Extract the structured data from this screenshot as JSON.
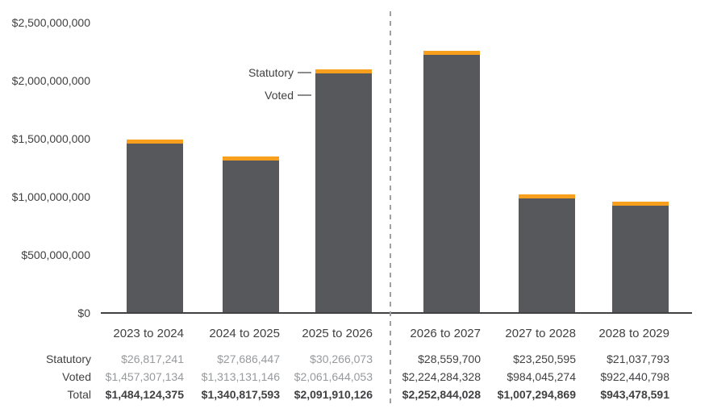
{
  "legend": {
    "statutory": "Statutory",
    "voted": "Voted"
  },
  "colors": {
    "bar_voted": "#57585B",
    "bar_statutory": "#F8A01E",
    "axis_line": "#414042",
    "divider_line": "#9EA0A3",
    "legend_line": "#8A8C8E",
    "text_dark": "#414042",
    "text_muted": "#97999C"
  },
  "chart_data": {
    "type": "bar",
    "stacked": true,
    "title": "",
    "xlabel": "",
    "ylabel": "",
    "categories": [
      "2023 to 2024",
      "2024 to 2025",
      "2025 to 2026",
      "2026 to 2027",
      "2027 to 2028",
      "2028 to 2029"
    ],
    "series": [
      {
        "name": "Voted",
        "color": "#57585B",
        "values": [
          1457307134,
          1313131146,
          2061644053,
          2224284328,
          984045274,
          922440798
        ]
      },
      {
        "name": "Statutory",
        "color": "#F8A01E",
        "values": [
          26817241,
          27686447,
          30266073,
          28559700,
          23250595,
          21037793
        ]
      }
    ],
    "totals": [
      1484124375,
      1340817593,
      2091910126,
      2252844028,
      1007294869,
      943478591
    ],
    "y_ticks": [
      "$0",
      "$500,000,000",
      "$1,000,000,000",
      "$1,500,000,000",
      "$2,000,000,000",
      "$2,500,000,000"
    ],
    "ylim": [
      0,
      2500000000
    ],
    "grid": false,
    "legend_position": "inside-left-of-third-bar",
    "divider_after_category_index": 2
  },
  "table": {
    "row_labels": [
      "Statutory",
      "Voted",
      "Total"
    ],
    "columns": [
      {
        "header": "2023 to 2024",
        "statutory": "$26,817,241",
        "voted": "$1,457,307,134",
        "total": "$1,484,124,375",
        "muted": true
      },
      {
        "header": "2024 to 2025",
        "statutory": "$27,686,447",
        "voted": "$1,313,131,146",
        "total": "$1,340,817,593",
        "muted": true
      },
      {
        "header": "2025 to 2026",
        "statutory": "$30,266,073",
        "voted": "$2,061,644,053",
        "total": "$2,091,910,126",
        "muted": true
      },
      {
        "header": "2026 to 2027",
        "statutory": "$28,559,700",
        "voted": "$2,224,284,328",
        "total": "$2,252,844,028",
        "muted": false
      },
      {
        "header": "2027 to 2028",
        "statutory": "$23,250,595",
        "voted": "$984,045,274",
        "total": "$1,007,294,869",
        "muted": false
      },
      {
        "header": "2028 to 2029",
        "statutory": "$21,037,793",
        "voted": "$922,440,798",
        "total": "$943,478,591",
        "muted": false
      }
    ]
  }
}
